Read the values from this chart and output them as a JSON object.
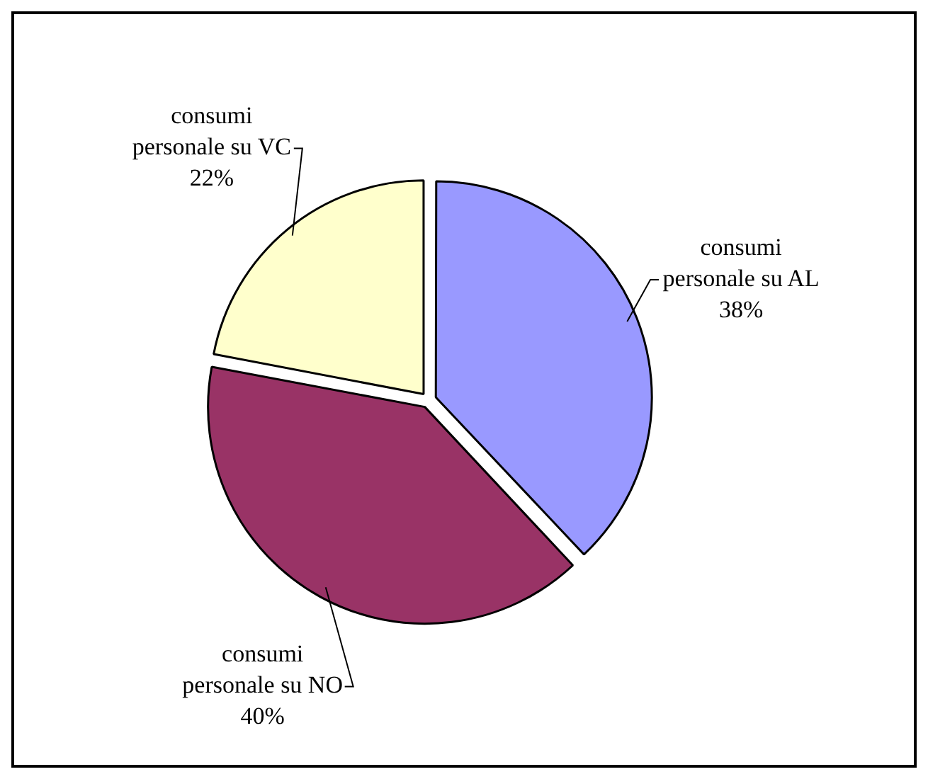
{
  "chart_data": {
    "type": "pie",
    "categories": [
      "consumi personale su AL",
      "consumi personale su NO",
      "consumi personale su VC"
    ],
    "values": [
      38,
      40,
      22
    ],
    "colors": [
      "#9999ff",
      "#993366",
      "#ffffcc"
    ],
    "value_labels": [
      "38%",
      "40%",
      "22%"
    ],
    "legend": false
  }
}
